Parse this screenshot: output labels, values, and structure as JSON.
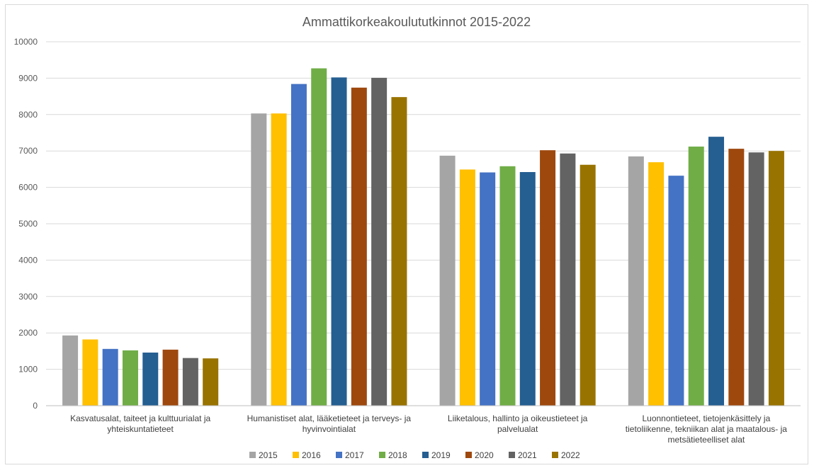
{
  "chart_data": {
    "type": "bar",
    "title": "Ammattikorkeakoulututkinnot 2015-2022",
    "xlabel": "",
    "ylabel": "",
    "ylim": [
      0,
      10000
    ],
    "yticks": [
      0,
      1000,
      2000,
      3000,
      4000,
      5000,
      6000,
      7000,
      8000,
      9000,
      10000
    ],
    "grid": true,
    "legend_position": "bottom",
    "categories": [
      [
        "Kasvatusalat, taiteet ja kulttuurialat ja",
        "yhteiskuntatieteet"
      ],
      [
        "Humanistiset alat, lääketieteet ja terveys- ja",
        "hyvinvointialat"
      ],
      [
        "Liiketalous, hallinto ja oikeustieteet ja",
        "palvelualat"
      ],
      [
        "Luonnontieteet, tietojenkäsittely ja",
        "tietoliikenne, tekniikan alat ja maatalous- ja",
        "metsätieteelliset alat"
      ]
    ],
    "series": [
      {
        "name": "2015",
        "color": "#a5a5a5",
        "values": [
          1930,
          8030,
          6870,
          6850
        ]
      },
      {
        "name": "2016",
        "color": "#ffc000",
        "values": [
          1820,
          8030,
          6490,
          6690
        ]
      },
      {
        "name": "2017",
        "color": "#4472c4",
        "values": [
          1560,
          8840,
          6410,
          6320
        ]
      },
      {
        "name": "2018",
        "color": "#70ad47",
        "values": [
          1520,
          9270,
          6580,
          7120
        ]
      },
      {
        "name": "2019",
        "color": "#255e91",
        "values": [
          1460,
          9020,
          6420,
          7390
        ]
      },
      {
        "name": "2020",
        "color": "#9e480e",
        "values": [
          1540,
          8740,
          7020,
          7060
        ]
      },
      {
        "name": "2021",
        "color": "#636363",
        "values": [
          1310,
          9010,
          6930,
          6960
        ]
      },
      {
        "name": "2022",
        "color": "#997300",
        "values": [
          1300,
          8480,
          6620,
          7000
        ]
      }
    ]
  }
}
